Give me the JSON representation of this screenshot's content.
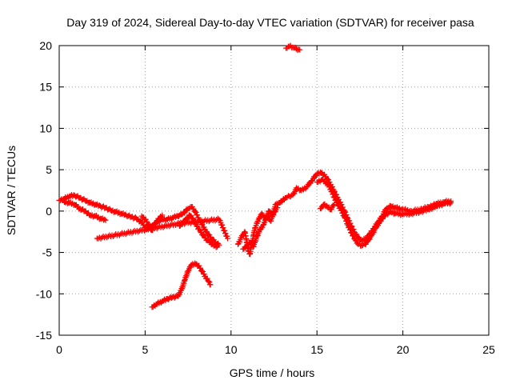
{
  "chart_data": {
    "type": "scatter",
    "title": "Day 319 of 2024, Sidereal Day-to-day VTEC variation (SDTVAR) for receiver pasa",
    "xlabel": "GPS time / hours",
    "ylabel": "SDTVAR / TECUs",
    "xlim": [
      0,
      25
    ],
    "ylim": [
      -15,
      20
    ],
    "xticks": [
      0,
      5,
      10,
      15,
      20,
      25
    ],
    "yticks": [
      -15,
      -10,
      -5,
      0,
      5,
      10,
      15,
      20
    ],
    "grid": true,
    "marker": "+",
    "color": "#ff0000",
    "series": [
      {
        "name": "track-a",
        "points": [
          [
            0.0,
            1.3
          ],
          [
            0.3,
            1.5
          ],
          [
            0.6,
            1.8
          ],
          [
            0.9,
            1.9
          ],
          [
            1.2,
            1.6
          ],
          [
            1.5,
            1.3
          ],
          [
            1.8,
            1.0
          ],
          [
            2.1,
            0.8
          ],
          [
            2.4,
            0.6
          ],
          [
            2.7,
            0.4
          ],
          [
            3.0,
            0.1
          ],
          [
            3.3,
            -0.1
          ],
          [
            3.6,
            -0.3
          ],
          [
            3.9,
            -0.5
          ],
          [
            4.2,
            -0.7
          ],
          [
            4.5,
            -0.9
          ],
          [
            4.8,
            -1.4
          ],
          [
            5.1,
            -2.2
          ],
          [
            5.4,
            -1.8
          ],
          [
            5.7,
            -1.3
          ],
          [
            6.0,
            -1.0
          ],
          [
            6.3,
            -1.0
          ],
          [
            6.6,
            -0.8
          ],
          [
            6.9,
            -0.6
          ],
          [
            7.2,
            -0.3
          ],
          [
            7.5,
            0.3
          ],
          [
            7.7,
            0.5
          ],
          [
            7.9,
            0.0
          ],
          [
            8.1,
            -0.8
          ],
          [
            8.3,
            -1.6
          ],
          [
            8.5,
            -2.3
          ],
          [
            8.7,
            -2.9
          ],
          [
            8.9,
            -3.4
          ],
          [
            9.1,
            -3.8
          ],
          [
            9.3,
            -4.1
          ]
        ]
      },
      {
        "name": "track-b",
        "points": [
          [
            0.3,
            1.1
          ],
          [
            0.6,
            1.0
          ],
          [
            0.9,
            0.8
          ],
          [
            1.2,
            0.3
          ],
          [
            1.5,
            0.0
          ],
          [
            1.8,
            -0.5
          ],
          [
            2.1,
            -0.6
          ],
          [
            2.4,
            -0.9
          ],
          [
            2.7,
            -1.1
          ]
        ]
      },
      {
        "name": "track-c",
        "points": [
          [
            4.8,
            -0.6
          ],
          [
            5.0,
            -1.0
          ],
          [
            5.2,
            -1.6
          ],
          [
            5.4,
            -2.3
          ],
          [
            5.6,
            -1.5
          ],
          [
            5.8,
            -0.9
          ],
          [
            6.0,
            -0.5
          ]
        ]
      },
      {
        "name": "track-d",
        "points": [
          [
            7.0,
            -1.8
          ],
          [
            7.3,
            -1.2
          ],
          [
            7.6,
            -0.5
          ],
          [
            7.8,
            -1.0
          ],
          [
            8.0,
            -1.8
          ],
          [
            8.2,
            -2.4
          ],
          [
            8.4,
            -3.0
          ],
          [
            8.6,
            -3.5
          ],
          [
            8.8,
            -3.8
          ],
          [
            9.0,
            -4.2
          ],
          [
            9.2,
            -4.3
          ]
        ]
      },
      {
        "name": "track-e",
        "points": [
          [
            5.4,
            -11.6
          ],
          [
            5.7,
            -11.2
          ],
          [
            6.0,
            -10.9
          ],
          [
            6.3,
            -10.6
          ],
          [
            6.6,
            -10.4
          ],
          [
            6.9,
            -10.3
          ],
          [
            7.1,
            -9.6
          ],
          [
            7.3,
            -8.4
          ],
          [
            7.5,
            -7.2
          ],
          [
            7.7,
            -6.5
          ],
          [
            7.9,
            -6.3
          ],
          [
            8.1,
            -6.6
          ],
          [
            8.3,
            -7.2
          ],
          [
            8.5,
            -7.9
          ],
          [
            8.7,
            -8.5
          ],
          [
            8.8,
            -8.9
          ]
        ]
      },
      {
        "name": "isolated",
        "points": [
          [
            2.2,
            -3.3
          ],
          [
            7.0,
            -1.5
          ],
          [
            9.3,
            -1.0
          ],
          [
            9.4,
            -1.4
          ],
          [
            9.8,
            -3.3
          ]
        ]
      },
      {
        "name": "track-f",
        "points": [
          [
            10.4,
            -4.0
          ],
          [
            10.6,
            -3.2
          ],
          [
            10.8,
            -2.5
          ],
          [
            10.9,
            -3.5
          ],
          [
            11.0,
            -4.8
          ],
          [
            11.1,
            -5.2
          ],
          [
            11.2,
            -4.0
          ],
          [
            11.3,
            -3.0
          ],
          [
            11.4,
            -2.0
          ],
          [
            11.6,
            -1.0
          ],
          [
            11.8,
            -0.3
          ],
          [
            12.0,
            -1.0
          ],
          [
            12.2,
            0.0
          ],
          [
            12.4,
            -0.5
          ],
          [
            12.6,
            0.8
          ],
          [
            12.8,
            1.0
          ],
          [
            13.0,
            1.3
          ],
          [
            13.2,
            1.6
          ],
          [
            13.4,
            1.8
          ],
          [
            13.6,
            2.0
          ],
          [
            13.8,
            2.6
          ]
        ]
      },
      {
        "name": "track-g",
        "points": [
          [
            10.7,
            -4.6
          ],
          [
            10.9,
            -4.2
          ],
          [
            11.1,
            -3.8
          ],
          [
            11.3,
            -4.3
          ],
          [
            11.5,
            -3.1
          ],
          [
            11.7,
            -2.2
          ],
          [
            11.9,
            -1.6
          ],
          [
            12.1,
            -0.6
          ],
          [
            12.3,
            -1.2
          ],
          [
            12.5,
            -0.2
          ],
          [
            12.7,
            0.4
          ]
        ]
      },
      {
        "name": "track-h",
        "points": [
          [
            13.8,
            2.8
          ],
          [
            14.1,
            2.5
          ],
          [
            14.4,
            2.9
          ],
          [
            14.7,
            3.7
          ],
          [
            15.0,
            4.5
          ],
          [
            15.2,
            4.7
          ],
          [
            15.4,
            4.4
          ],
          [
            15.6,
            3.9
          ],
          [
            15.8,
            3.2
          ],
          [
            16.0,
            2.4
          ],
          [
            16.2,
            1.6
          ],
          [
            16.4,
            0.8
          ],
          [
            16.6,
            0.0
          ],
          [
            16.8,
            -0.9
          ],
          [
            17.0,
            -1.8
          ],
          [
            17.2,
            -2.6
          ],
          [
            17.4,
            -3.2
          ],
          [
            17.6,
            -3.6
          ],
          [
            17.8,
            -3.4
          ],
          [
            18.0,
            -3.0
          ],
          [
            18.2,
            -2.4
          ],
          [
            18.4,
            -1.8
          ],
          [
            18.6,
            -1.2
          ],
          [
            18.8,
            -0.6
          ],
          [
            19.0,
            0.2
          ],
          [
            19.3,
            0.6
          ],
          [
            19.6,
            0.4
          ],
          [
            20.0,
            0.2
          ],
          [
            20.5,
            0.0
          ],
          [
            21.0,
            0.2
          ],
          [
            21.5,
            0.5
          ],
          [
            22.0,
            0.9
          ],
          [
            22.4,
            1.1
          ],
          [
            22.8,
            1.2
          ]
        ]
      },
      {
        "name": "track-i",
        "points": [
          [
            15.0,
            3.5
          ],
          [
            15.3,
            3.8
          ],
          [
            15.6,
            3.3
          ],
          [
            15.8,
            2.6
          ],
          [
            16.0,
            1.7
          ],
          [
            16.2,
            0.8
          ],
          [
            16.4,
            0.1
          ],
          [
            16.6,
            -0.7
          ],
          [
            16.8,
            -1.7
          ],
          [
            17.0,
            -2.6
          ],
          [
            17.2,
            -3.4
          ],
          [
            17.4,
            -4.0
          ],
          [
            17.6,
            -4.2
          ],
          [
            17.8,
            -4.0
          ],
          [
            18.0,
            -3.5
          ],
          [
            18.2,
            -2.8
          ],
          [
            18.4,
            -2.1
          ],
          [
            18.6,
            -1.5
          ],
          [
            18.8,
            -0.9
          ],
          [
            19.0,
            -0.4
          ],
          [
            19.3,
            -0.1
          ],
          [
            19.6,
            -0.3
          ],
          [
            20.0,
            -0.4
          ],
          [
            20.5,
            -0.3
          ],
          [
            21.0,
            -0.1
          ],
          [
            21.5,
            0.2
          ],
          [
            22.0,
            0.6
          ],
          [
            22.4,
            0.9
          ],
          [
            22.8,
            1.0
          ]
        ]
      },
      {
        "name": "track-j",
        "points": [
          [
            15.2,
            0.3
          ],
          [
            15.4,
            0.8
          ],
          [
            15.6,
            0.5
          ],
          [
            15.8,
            0.2
          ],
          [
            16.0,
            0.8
          ]
        ]
      },
      {
        "name": "top-cluster",
        "points": [
          [
            13.2,
            19.7
          ],
          [
            13.4,
            19.9
          ],
          [
            13.6,
            19.8
          ],
          [
            13.8,
            19.6
          ],
          [
            14.0,
            19.5
          ]
        ]
      }
    ]
  }
}
